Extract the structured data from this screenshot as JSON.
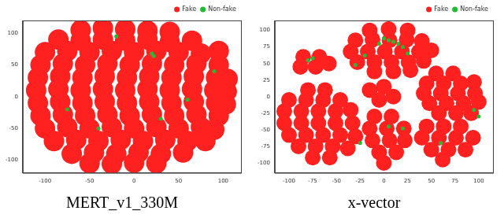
{
  "chart_data": [
    {
      "type": "scatter",
      "title": "MERT_v1_330M",
      "xlim": [
        -125,
        120
      ],
      "ylim": [
        -120,
        120
      ],
      "xticks": [
        -100,
        -50,
        0,
        50,
        100
      ],
      "yticks": [
        -100,
        -50,
        0,
        50,
        100
      ],
      "grid": false,
      "legend": "upper right",
      "series": [
        {
          "name": "Fake",
          "color": "#ff2020",
          "marker": "circle",
          "values": [
            [
              -60,
              105
            ],
            [
              -35,
              108
            ],
            [
              -10,
              106
            ],
            [
              15,
              104
            ],
            [
              40,
              102
            ],
            [
              -85,
              90
            ],
            [
              -60,
              88
            ],
            [
              -35,
              90
            ],
            [
              -10,
              88
            ],
            [
              15,
              90
            ],
            [
              40,
              86
            ],
            [
              65,
              88
            ],
            [
              -100,
              70
            ],
            [
              -75,
              72
            ],
            [
              -50,
              70
            ],
            [
              -25,
              72
            ],
            [
              0,
              70
            ],
            [
              25,
              72
            ],
            [
              50,
              70
            ],
            [
              75,
              68
            ],
            [
              95,
              72
            ],
            [
              -105,
              50
            ],
            [
              -80,
              52
            ],
            [
              -55,
              50
            ],
            [
              -30,
              52
            ],
            [
              -5,
              50
            ],
            [
              20,
              52
            ],
            [
              45,
              50
            ],
            [
              70,
              52
            ],
            [
              95,
              50
            ],
            [
              -108,
              30
            ],
            [
              -83,
              32
            ],
            [
              -58,
              30
            ],
            [
              -33,
              32
            ],
            [
              -8,
              30
            ],
            [
              17,
              32
            ],
            [
              42,
              30
            ],
            [
              67,
              32
            ],
            [
              92,
              30
            ],
            [
              105,
              28
            ],
            [
              -110,
              10
            ],
            [
              -85,
              12
            ],
            [
              -60,
              10
            ],
            [
              -35,
              12
            ],
            [
              -10,
              10
            ],
            [
              15,
              12
            ],
            [
              40,
              10
            ],
            [
              65,
              12
            ],
            [
              90,
              10
            ],
            [
              104,
              8
            ],
            [
              -108,
              -10
            ],
            [
              -83,
              -8
            ],
            [
              -58,
              -10
            ],
            [
              -33,
              -8
            ],
            [
              -8,
              -10
            ],
            [
              17,
              -8
            ],
            [
              42,
              -10
            ],
            [
              67,
              -8
            ],
            [
              92,
              -10
            ],
            [
              103,
              -12
            ],
            [
              -105,
              -30
            ],
            [
              -80,
              -28
            ],
            [
              -55,
              -30
            ],
            [
              -30,
              -28
            ],
            [
              -5,
              -30
            ],
            [
              20,
              -28
            ],
            [
              45,
              -30
            ],
            [
              70,
              -28
            ],
            [
              95,
              -30
            ],
            [
              -100,
              -50
            ],
            [
              -75,
              -48
            ],
            [
              -50,
              -50
            ],
            [
              -25,
              -48
            ],
            [
              0,
              -50
            ],
            [
              25,
              -48
            ],
            [
              50,
              -50
            ],
            [
              75,
              -48
            ],
            [
              90,
              -52
            ],
            [
              -90,
              -70
            ],
            [
              -65,
              -68
            ],
            [
              -40,
              -70
            ],
            [
              -15,
              -68
            ],
            [
              10,
              -70
            ],
            [
              35,
              -68
            ],
            [
              60,
              -70
            ],
            [
              80,
              -70
            ],
            [
              -70,
              -90
            ],
            [
              -45,
              -88
            ],
            [
              -20,
              -90
            ],
            [
              5,
              -88
            ],
            [
              30,
              -90
            ],
            [
              55,
              -88
            ],
            [
              -50,
              -105
            ],
            [
              -25,
              -106
            ],
            [
              0,
              -104
            ],
            [
              25,
              -105
            ]
          ]
        },
        {
          "name": "Non-fake",
          "color": "#22bb33",
          "marker": "circle",
          "values": [
            [
              20,
              68
            ],
            [
              22,
              64
            ],
            [
              -75,
              -20
            ],
            [
              30,
              -35
            ],
            [
              90,
              40
            ],
            [
              -40,
              -50
            ],
            [
              60,
              -5
            ],
            [
              -20,
              95
            ]
          ]
        }
      ]
    },
    {
      "type": "scatter",
      "title": "x-vector",
      "xlim": [
        -115,
        115
      ],
      "ylim": [
        -115,
        115
      ],
      "xticks": [
        -100,
        -75,
        -50,
        -25,
        0,
        25,
        50,
        75,
        100
      ],
      "yticks": [
        -100,
        -75,
        -50,
        -25,
        0,
        25,
        50,
        75,
        100
      ],
      "grid": false,
      "legend": "upper right",
      "series": [
        {
          "name": "Fake",
          "color": "#ff2020",
          "marker": "circle",
          "values": [
            [
              -15,
              100
            ],
            [
              5,
              102
            ],
            [
              25,
              100
            ],
            [
              -30,
              85
            ],
            [
              -12,
              86
            ],
            [
              6,
              85
            ],
            [
              24,
              86
            ],
            [
              40,
              84
            ],
            [
              -35,
              68
            ],
            [
              -17,
              68
            ],
            [
              1,
              68
            ],
            [
              19,
              68
            ],
            [
              37,
              68
            ],
            [
              50,
              70
            ],
            [
              -28,
              52
            ],
            [
              -10,
              52
            ],
            [
              8,
              52
            ],
            [
              26,
              52
            ],
            [
              42,
              54
            ],
            [
              -10,
              38
            ],
            [
              10,
              38
            ],
            [
              28,
              40
            ],
            [
              -85,
              60
            ],
            [
              -68,
              60
            ],
            [
              -88,
              45
            ],
            [
              -72,
              45
            ],
            [
              -58,
              50
            ],
            [
              -80,
              10
            ],
            [
              -62,
              10
            ],
            [
              -100,
              -5
            ],
            [
              -82,
              -5
            ],
            [
              -64,
              -5
            ],
            [
              -46,
              -5
            ],
            [
              -105,
              -22
            ],
            [
              -87,
              -22
            ],
            [
              -69,
              -22
            ],
            [
              -51,
              -22
            ],
            [
              -35,
              -20
            ],
            [
              -105,
              -40
            ],
            [
              -87,
              -40
            ],
            [
              -69,
              -40
            ],
            [
              -51,
              -40
            ],
            [
              -33,
              -40
            ],
            [
              -100,
              -58
            ],
            [
              -82,
              -58
            ],
            [
              -64,
              -58
            ],
            [
              -46,
              -58
            ],
            [
              -30,
              -60
            ],
            [
              -90,
              -75
            ],
            [
              -72,
              -75
            ],
            [
              -54,
              -75
            ],
            [
              -38,
              -78
            ],
            [
              -75,
              -92
            ],
            [
              -57,
              -92
            ],
            [
              -15,
              10
            ],
            [
              0,
              15
            ],
            [
              -5,
              -5
            ],
            [
              10,
              0
            ],
            [
              -10,
              -30
            ],
            [
              8,
              -30
            ],
            [
              -15,
              -48
            ],
            [
              3,
              -48
            ],
            [
              21,
              -48
            ],
            [
              -12,
              -66
            ],
            [
              6,
              -66
            ],
            [
              22,
              -66
            ],
            [
              -5,
              -84
            ],
            [
              13,
              -84
            ],
            [
              0,
              -100
            ],
            [
              55,
              35
            ],
            [
              73,
              35
            ],
            [
              45,
              20
            ],
            [
              63,
              20
            ],
            [
              81,
              20
            ],
            [
              95,
              22
            ],
            [
              42,
              5
            ],
            [
              60,
              5
            ],
            [
              78,
              5
            ],
            [
              96,
              5
            ],
            [
              48,
              -10
            ],
            [
              66,
              -10
            ],
            [
              84,
              -10
            ],
            [
              100,
              -8
            ],
            [
              58,
              -25
            ],
            [
              76,
              -25
            ],
            [
              92,
              -25
            ],
            [
              45,
              -45
            ],
            [
              63,
              -45
            ],
            [
              81,
              -45
            ],
            [
              40,
              -62
            ],
            [
              58,
              -62
            ],
            [
              76,
              -62
            ],
            [
              94,
              -62
            ],
            [
              50,
              -80
            ],
            [
              68,
              -80
            ],
            [
              86,
              -80
            ],
            [
              62,
              -95
            ]
          ]
        },
        {
          "name": "Non-fake",
          "color": "#22bb33",
          "marker": "circle",
          "values": [
            [
              0,
              88
            ],
            [
              5,
              85
            ],
            [
              10,
              83
            ],
            [
              -5,
              80
            ],
            [
              15,
              80
            ],
            [
              -20,
              62
            ],
            [
              20,
              75
            ],
            [
              25,
              65
            ],
            [
              -30,
              48
            ],
            [
              -75,
              58
            ],
            [
              -80,
              55
            ],
            [
              5,
              -45
            ],
            [
              20,
              -48
            ],
            [
              95,
              -20
            ],
            [
              100,
              -30
            ],
            [
              -25,
              -70
            ],
            [
              60,
              -70
            ]
          ]
        }
      ]
    }
  ]
}
